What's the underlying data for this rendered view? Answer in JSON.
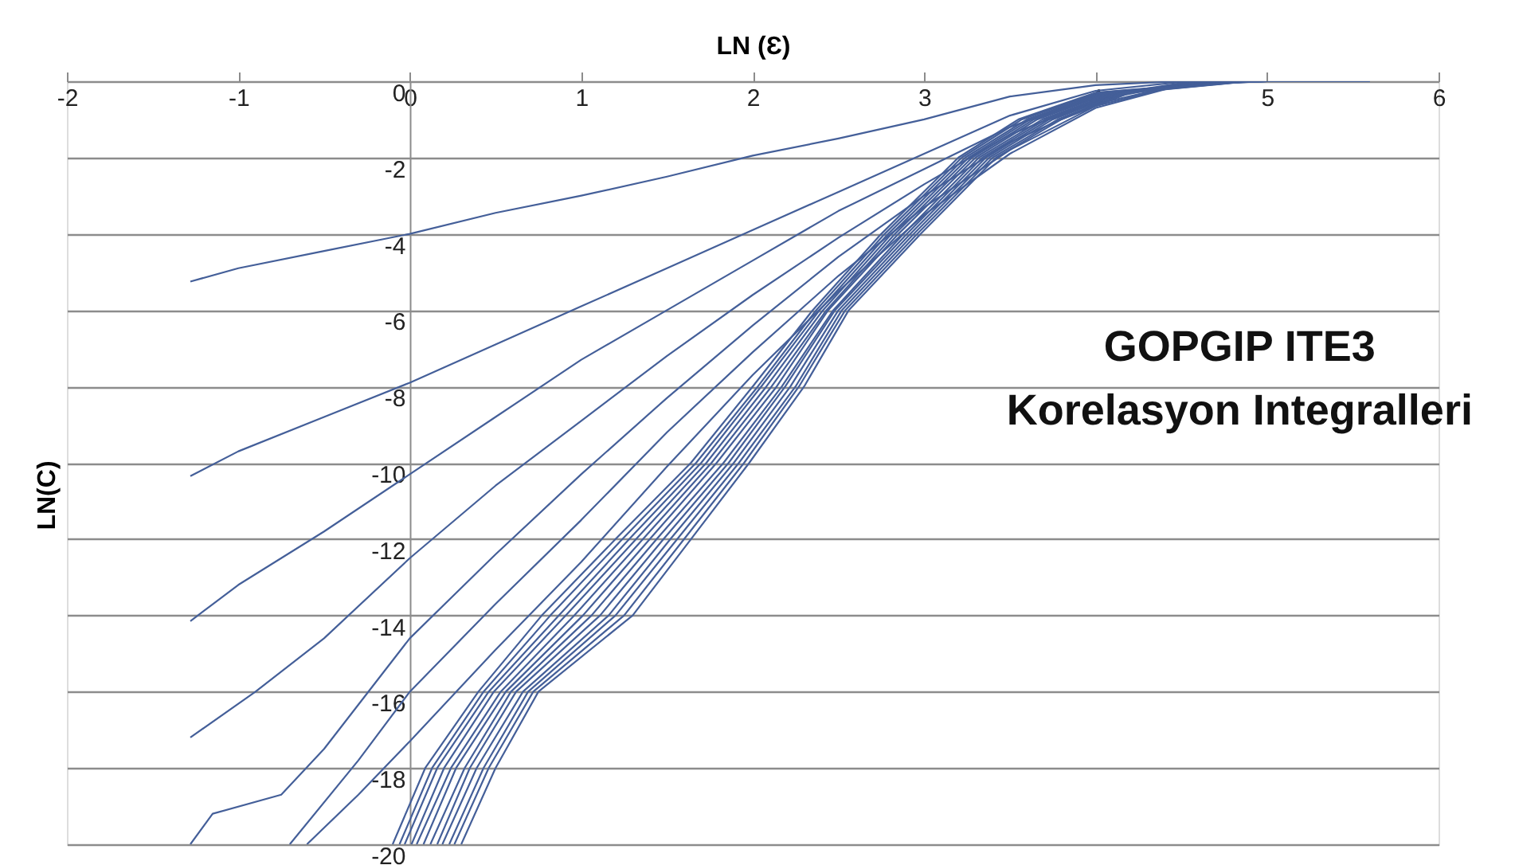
{
  "chart_data": {
    "type": "line",
    "xlabel": "LN (Ɛ)",
    "ylabel": "LN(C)",
    "xlim": [
      -2,
      6
    ],
    "ylim": [
      -20,
      0
    ],
    "xticks": [
      -2,
      -1,
      0,
      1,
      2,
      3,
      4,
      5,
      6
    ],
    "yticks": [
      0,
      -2,
      -4,
      -6,
      -8,
      -10,
      -12,
      -14,
      -16,
      -18,
      -20
    ],
    "grid": "y",
    "legend": false,
    "marker": "none",
    "line_style": "solid",
    "annotations": [
      "GOPGIP ITE3",
      "Korelasyon Integralleri"
    ],
    "series": [
      {
        "color": "#445f99",
        "x": [
          -1.28,
          -1,
          -0.5,
          0,
          0.5,
          1,
          1.5,
          2,
          2.5,
          3,
          3.5,
          4,
          4.5,
          5,
          5.6
        ],
        "values": [
          -5.25,
          -4.9,
          -4.45,
          -4,
          -3.45,
          -3,
          -2.5,
          -1.95,
          -1.5,
          -1,
          -0.4,
          -0.1,
          0,
          0,
          0
        ]
      },
      {
        "color": "#445f99",
        "x": [
          -1.28,
          -1,
          -0.5,
          0,
          0.5,
          1,
          1.5,
          2,
          2.5,
          3,
          3.5,
          4,
          4.5,
          5
        ],
        "values": [
          -10.35,
          -9.7,
          -8.8,
          -7.9,
          -6.9,
          -5.9,
          -4.9,
          -3.9,
          -2.9,
          -1.9,
          -0.9,
          -0.25,
          -0.02,
          0
        ]
      },
      {
        "color": "#445f99",
        "x": [
          -1.28,
          -1,
          -0.5,
          0,
          0.5,
          1,
          1.5,
          2,
          2.5,
          3,
          3.5,
          4,
          4.5,
          5
        ],
        "values": [
          -14.15,
          -13.2,
          -11.8,
          -10.3,
          -8.8,
          -7.3,
          -6,
          -4.7,
          -3.4,
          -2.3,
          -1.2,
          -0.4,
          -0.05,
          0
        ]
      },
      {
        "color": "#445f99",
        "x": [
          -1.28,
          -0.9,
          -0.5,
          0,
          0.5,
          1,
          1.5,
          2,
          2.5,
          3,
          3.5,
          4,
          4.5,
          5
        ],
        "values": [
          -17.2,
          -16,
          -14.6,
          -12.5,
          -10.6,
          -8.9,
          -7.2,
          -5.6,
          -4.1,
          -2.7,
          -1.4,
          -0.5,
          -0.07,
          0
        ]
      },
      {
        "color": "#445f99",
        "x": [
          -1.28,
          -1.15,
          -0.75,
          -0.5,
          0,
          0.5,
          1,
          1.5,
          2,
          2.5,
          3,
          3.5,
          4,
          4.5,
          5
        ],
        "values": [
          -20,
          -19.2,
          -18.7,
          -17.5,
          -14.6,
          -12.4,
          -10.3,
          -8.3,
          -6.4,
          -4.6,
          -3,
          -1.6,
          -0.6,
          -0.08,
          0
        ]
      },
      {
        "color": "#445f99",
        "x": [
          -0.7,
          -0.3,
          0,
          0.5,
          1,
          1.5,
          2,
          2.5,
          3,
          3.5,
          4,
          4.5,
          5
        ],
        "values": [
          -20,
          -17.8,
          -16,
          -13.7,
          -11.5,
          -9.2,
          -7.1,
          -5.1,
          -3.3,
          -1.8,
          -0.65,
          -0.09,
          0
        ]
      },
      {
        "color": "#445f99",
        "x": [
          -0.6,
          -0.3,
          0,
          0.5,
          1,
          1.5,
          2,
          2.5,
          3,
          3.5,
          4,
          4.5,
          5
        ],
        "values": [
          -20,
          -18.7,
          -17.3,
          -14.9,
          -12.6,
          -10.1,
          -7.7,
          -5.5,
          -3.5,
          -1.9,
          -0.7,
          -0.1,
          0
        ]
      },
      {
        "color": "#445f99",
        "x": [
          -0.1,
          0.09,
          0.4,
          0.77,
          1.2,
          1.64,
          2.0,
          2.35,
          2.75,
          3.2,
          3.55,
          4.0,
          4.8
        ],
        "values": [
          -20,
          -18,
          -16,
          -14,
          -12,
          -10,
          -8,
          -6,
          -4,
          -2,
          -1,
          -0.3,
          0
        ]
      },
      {
        "color": "#445f99",
        "x": [
          -0.06,
          0.13,
          0.43,
          0.82,
          1.24,
          1.67,
          2.03,
          2.37,
          2.77,
          3.22,
          3.57,
          4.02,
          4.81
        ],
        "values": [
          -20,
          -18,
          -16,
          -14,
          -12,
          -10,
          -8,
          -6,
          -4,
          -2,
          -1,
          -0.3,
          0
        ]
      },
      {
        "color": "#445f99",
        "x": [
          -0.03,
          0.16,
          0.46,
          0.87,
          1.28,
          1.7,
          2.05,
          2.39,
          2.79,
          3.24,
          3.6,
          4.04,
          4.82
        ],
        "values": [
          -20,
          -18,
          -16,
          -14,
          -12,
          -10,
          -8,
          -6,
          -4,
          -2,
          -1,
          -0.3,
          0
        ]
      },
      {
        "color": "#445f99",
        "x": [
          0.01,
          0.2,
          0.49,
          0.91,
          1.32,
          1.73,
          2.08,
          2.41,
          2.81,
          3.26,
          3.62,
          4.05,
          4.83
        ],
        "values": [
          -20,
          -18,
          -16,
          -14,
          -12,
          -10,
          -8,
          -6,
          -4,
          -2,
          -1,
          -0.3,
          0
        ]
      },
      {
        "color": "#445f99",
        "x": [
          0.04,
          0.24,
          0.53,
          0.96,
          1.36,
          1.76,
          2.11,
          2.43,
          2.83,
          3.28,
          3.64,
          4.07,
          4.84
        ],
        "values": [
          -20,
          -18,
          -16,
          -14,
          -12,
          -10,
          -8,
          -6,
          -4,
          -2,
          -1,
          -0.3,
          0
        ]
      },
      {
        "color": "#445f99",
        "x": [
          0.08,
          0.27,
          0.56,
          1.01,
          1.4,
          1.79,
          2.14,
          2.44,
          2.85,
          3.3,
          3.66,
          4.09,
          4.85
        ],
        "values": [
          -20,
          -18,
          -16,
          -14,
          -12,
          -10,
          -8,
          -6,
          -4,
          -2,
          -1,
          -0.3,
          0
        ]
      },
      {
        "color": "#445f99",
        "x": [
          0.12,
          0.32,
          0.59,
          1.06,
          1.44,
          1.83,
          2.17,
          2.47,
          2.88,
          3.32,
          3.69,
          4.11,
          4.85
        ],
        "values": [
          -20,
          -18,
          -16,
          -14,
          -12,
          -10,
          -8,
          -6,
          -4,
          -2,
          -1,
          -0.3,
          0
        ]
      },
      {
        "color": "#445f99",
        "x": [
          0.16,
          0.35,
          0.62,
          1.11,
          1.48,
          1.86,
          2.19,
          2.48,
          2.9,
          3.34,
          3.71,
          4.13,
          4.86
        ],
        "values": [
          -20,
          -18,
          -16,
          -14,
          -12,
          -10,
          -8,
          -6,
          -4,
          -2,
          -1,
          -0.3,
          0
        ]
      },
      {
        "color": "#445f99",
        "x": [
          0.19,
          0.39,
          0.66,
          1.16,
          1.52,
          1.89,
          2.22,
          2.5,
          2.92,
          3.36,
          3.73,
          4.15,
          4.87
        ],
        "values": [
          -20,
          -18,
          -16,
          -14,
          -12,
          -10,
          -8,
          -6,
          -4,
          -2,
          -1,
          -0.3,
          0
        ]
      },
      {
        "color": "#445f99",
        "x": [
          0.23,
          0.43,
          0.69,
          1.2,
          1.56,
          1.92,
          2.25,
          2.52,
          2.94,
          3.38,
          3.75,
          4.16,
          4.88
        ],
        "values": [
          -20,
          -18,
          -16,
          -14,
          -12,
          -10,
          -8,
          -6,
          -4,
          -2,
          -1,
          -0.3,
          0
        ]
      },
      {
        "color": "#445f99",
        "x": [
          0.26,
          0.46,
          0.72,
          1.25,
          1.6,
          1.95,
          2.27,
          2.54,
          2.96,
          3.4,
          3.78,
          4.18,
          4.89
        ],
        "values": [
          -20,
          -18,
          -16,
          -14,
          -12,
          -10,
          -8,
          -6,
          -4,
          -2,
          -1,
          -0.3,
          0
        ]
      },
      {
        "color": "#445f99",
        "x": [
          0.3,
          0.5,
          0.75,
          1.3,
          1.64,
          1.98,
          2.3,
          2.56,
          2.98,
          3.42,
          3.8,
          4.2,
          4.9
        ],
        "values": [
          -20,
          -18,
          -16,
          -14,
          -12,
          -10,
          -8,
          -6,
          -4,
          -2,
          -1,
          -0.3,
          0
        ]
      }
    ]
  }
}
